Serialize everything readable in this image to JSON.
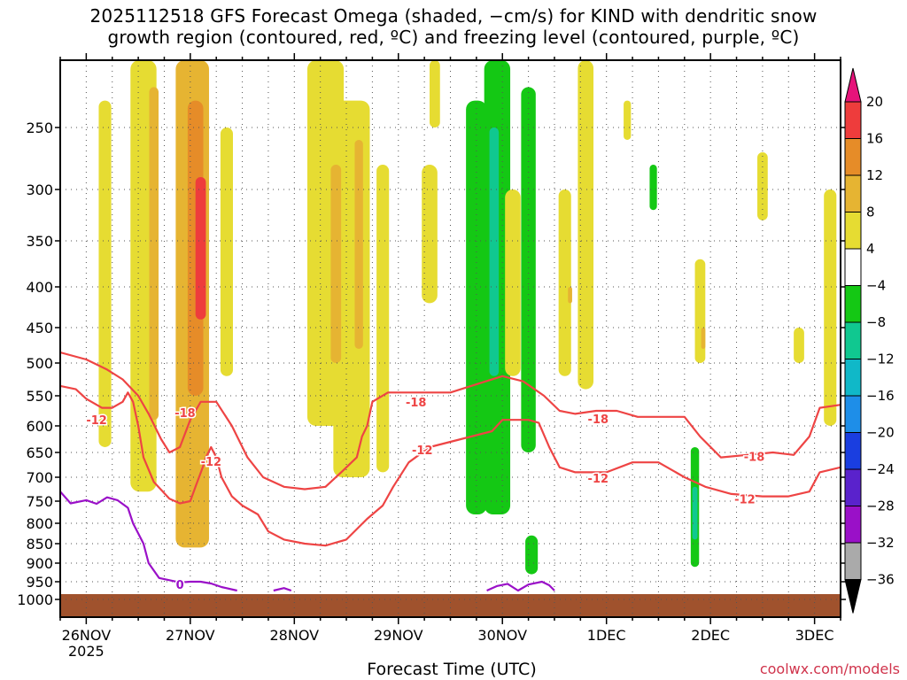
{
  "title_line1": "2025112518 GFS Forecast Omega (shaded, −cm/s) for KIND with dendritic snow",
  "title_line2": "growth region (contoured, red, ºC) and freezing level (contoured, purple, ºC)",
  "xlabel": "Forecast Time (UTC)",
  "credit": "coolwx.com/models",
  "chart_data": {
    "type": "heatmap",
    "title": "2025112518 GFS Forecast Omega (shaded, −cm/s) for KIND with dendritic snow growth region (contoured, red, ºC) and freezing level (contoured, purple, ºC)",
    "xlabel": "Forecast Time (UTC)",
    "ylabel": "",
    "y_axis": {
      "scale": "pressure",
      "inverted": true,
      "range": [
        1050,
        200
      ],
      "ticks": [
        250,
        300,
        350,
        400,
        450,
        500,
        550,
        600,
        650,
        700,
        750,
        800,
        850,
        900,
        950,
        1000
      ]
    },
    "x_axis": {
      "range": [
        -0.25,
        7.25
      ],
      "unit": "days from 26NOV 00Z",
      "tick_positions": [
        0,
        1,
        2,
        3,
        4,
        5,
        6,
        7
      ],
      "tick_labels": [
        "26NOV",
        "27NOV",
        "28NOV",
        "29NOV",
        "30NOV",
        "1DEC",
        "2DEC",
        "3DEC"
      ],
      "year_label": "2025"
    },
    "grid": true,
    "colorbar": {
      "levels": [
        -36,
        -32,
        -28,
        -24,
        -20,
        -16,
        -12,
        -8,
        -4,
        4,
        8,
        12,
        16,
        20
      ],
      "colors": [
        "#000000",
        "#aaaaaa",
        "#9a10c8",
        "#5a22cc",
        "#1a3ee0",
        "#1e8ee8",
        "#10b8c8",
        "#10c890",
        "#14c814",
        "#ffffff",
        "#e6dc32",
        "#e6b432",
        "#e68c28",
        "#ee3c3c",
        "#e6137a"
      ]
    },
    "shaded_regions": [
      {
        "x": 0.18,
        "p_top": 230,
        "p_bottom": 640,
        "width": 0.12,
        "value": 6
      },
      {
        "x": 0.55,
        "p_top": 200,
        "p_bottom": 730,
        "width": 0.25,
        "value": 7
      },
      {
        "x": 0.65,
        "p_top": 220,
        "p_bottom": 590,
        "width": 0.09,
        "value": 11
      },
      {
        "x": 1.02,
        "p_top": 200,
        "p_bottom": 860,
        "width": 0.32,
        "value": 8
      },
      {
        "x": 1.05,
        "p_top": 230,
        "p_bottom": 550,
        "width": 0.15,
        "value": 12
      },
      {
        "x": 1.1,
        "p_top": 290,
        "p_bottom": 440,
        "width": 0.1,
        "value": 17
      },
      {
        "x": 1.35,
        "p_top": 250,
        "p_bottom": 520,
        "width": 0.12,
        "value": 5
      },
      {
        "x": 2.3,
        "p_top": 200,
        "p_bottom": 600,
        "width": 0.35,
        "value": 6
      },
      {
        "x": 2.55,
        "p_top": 230,
        "p_bottom": 700,
        "width": 0.35,
        "value": 6
      },
      {
        "x": 2.4,
        "p_top": 280,
        "p_bottom": 500,
        "width": 0.1,
        "value": 10
      },
      {
        "x": 2.62,
        "p_top": 260,
        "p_bottom": 480,
        "width": 0.08,
        "value": 11
      },
      {
        "x": 2.85,
        "p_top": 280,
        "p_bottom": 690,
        "width": 0.12,
        "value": 6
      },
      {
        "x": 3.3,
        "p_top": 280,
        "p_bottom": 420,
        "width": 0.15,
        "value": 5
      },
      {
        "x": 3.35,
        "p_top": 200,
        "p_bottom": 250,
        "width": 0.1,
        "value": 5
      },
      {
        "x": 3.75,
        "p_top": 230,
        "p_bottom": 780,
        "width": 0.2,
        "value": -7
      },
      {
        "x": 3.95,
        "p_top": 200,
        "p_bottom": 780,
        "width": 0.25,
        "value": -7
      },
      {
        "x": 3.92,
        "p_top": 250,
        "p_bottom": 520,
        "width": 0.09,
        "value": -11
      },
      {
        "x": 4.25,
        "p_top": 220,
        "p_bottom": 650,
        "width": 0.14,
        "value": -5
      },
      {
        "x": 4.28,
        "p_top": 830,
        "p_bottom": 930,
        "width": 0.12,
        "value": -6
      },
      {
        "x": 4.1,
        "p_top": 300,
        "p_bottom": 520,
        "width": 0.15,
        "value": 6
      },
      {
        "x": 4.6,
        "p_top": 300,
        "p_bottom": 520,
        "width": 0.12,
        "value": 6
      },
      {
        "x": 4.65,
        "p_top": 400,
        "p_bottom": 420,
        "width": 0.04,
        "value": 10
      },
      {
        "x": 4.8,
        "p_top": 200,
        "p_bottom": 540,
        "width": 0.15,
        "value": 5
      },
      {
        "x": 5.2,
        "p_top": 230,
        "p_bottom": 260,
        "width": 0.07,
        "value": 5
      },
      {
        "x": 5.45,
        "p_top": 280,
        "p_bottom": 320,
        "width": 0.07,
        "value": -6
      },
      {
        "x": 5.9,
        "p_top": 370,
        "p_bottom": 500,
        "width": 0.1,
        "value": 6
      },
      {
        "x": 5.93,
        "p_top": 450,
        "p_bottom": 480,
        "width": 0.04,
        "value": 10
      },
      {
        "x": 5.85,
        "p_top": 640,
        "p_bottom": 910,
        "width": 0.08,
        "value": -8
      },
      {
        "x": 5.85,
        "p_top": 720,
        "p_bottom": 840,
        "width": 0.05,
        "value": -12
      },
      {
        "x": 6.5,
        "p_top": 270,
        "p_bottom": 330,
        "width": 0.1,
        "value": 5
      },
      {
        "x": 6.85,
        "p_top": 450,
        "p_bottom": 500,
        "width": 0.1,
        "value": 5
      },
      {
        "x": 7.15,
        "p_top": 300,
        "p_bottom": 600,
        "width": 0.12,
        "value": 6
      }
    ],
    "series": [
      {
        "name": "-18",
        "kind": "contour",
        "color": "#ee4444",
        "points": [
          [
            -0.25,
            485
          ],
          [
            0.0,
            495
          ],
          [
            0.2,
            510
          ],
          [
            0.35,
            525
          ],
          [
            0.5,
            550
          ],
          [
            0.6,
            580
          ],
          [
            0.72,
            625
          ],
          [
            0.8,
            650
          ],
          [
            0.9,
            640
          ],
          [
            1.0,
            590
          ],
          [
            1.1,
            560
          ],
          [
            1.25,
            560
          ],
          [
            1.4,
            600
          ],
          [
            1.55,
            660
          ],
          [
            1.7,
            700
          ],
          [
            1.9,
            720
          ],
          [
            2.1,
            725
          ],
          [
            2.3,
            720
          ],
          [
            2.45,
            690
          ],
          [
            2.6,
            660
          ],
          [
            2.65,
            620
          ],
          [
            2.7,
            600
          ],
          [
            2.75,
            560
          ],
          [
            2.9,
            545
          ],
          [
            3.1,
            545
          ],
          [
            3.5,
            545
          ],
          [
            3.8,
            530
          ],
          [
            4.0,
            520
          ],
          [
            4.2,
            528
          ],
          [
            4.4,
            550
          ],
          [
            4.55,
            575
          ],
          [
            4.7,
            580
          ],
          [
            4.9,
            575
          ],
          [
            5.1,
            575
          ],
          [
            5.3,
            585
          ],
          [
            5.5,
            585
          ],
          [
            5.75,
            585
          ],
          [
            5.9,
            620
          ],
          [
            6.1,
            660
          ],
          [
            6.35,
            655
          ],
          [
            6.6,
            650
          ],
          [
            6.8,
            655
          ],
          [
            6.95,
            620
          ],
          [
            7.05,
            570
          ],
          [
            7.25,
            565
          ]
        ]
      },
      {
        "name": "-12",
        "kind": "contour",
        "color": "#ee4444",
        "points": [
          [
            -0.25,
            535
          ],
          [
            -0.1,
            540
          ],
          [
            0.0,
            555
          ],
          [
            0.15,
            570
          ],
          [
            0.25,
            570
          ],
          [
            0.35,
            560
          ],
          [
            0.4,
            545
          ],
          [
            0.45,
            560
          ],
          [
            0.5,
            600
          ],
          [
            0.55,
            660
          ],
          [
            0.65,
            710
          ],
          [
            0.8,
            745
          ],
          [
            0.9,
            755
          ],
          [
            1.0,
            750
          ],
          [
            1.05,
            720
          ],
          [
            1.12,
            680
          ],
          [
            1.15,
            660
          ],
          [
            1.2,
            640
          ],
          [
            1.25,
            660
          ],
          [
            1.3,
            700
          ],
          [
            1.4,
            740
          ],
          [
            1.5,
            760
          ],
          [
            1.65,
            780
          ],
          [
            1.75,
            820
          ],
          [
            1.9,
            840
          ],
          [
            2.1,
            850
          ],
          [
            2.3,
            855
          ],
          [
            2.5,
            840
          ],
          [
            2.7,
            790
          ],
          [
            2.85,
            760
          ],
          [
            2.95,
            720
          ],
          [
            3.1,
            670
          ],
          [
            3.3,
            640
          ],
          [
            3.5,
            630
          ],
          [
            3.7,
            620
          ],
          [
            3.9,
            610
          ],
          [
            4.0,
            590
          ],
          [
            4.1,
            590
          ],
          [
            4.25,
            590
          ],
          [
            4.35,
            595
          ],
          [
            4.45,
            640
          ],
          [
            4.55,
            680
          ],
          [
            4.7,
            690
          ],
          [
            4.85,
            690
          ],
          [
            5.0,
            690
          ],
          [
            5.25,
            670
          ],
          [
            5.5,
            670
          ],
          [
            5.75,
            700
          ],
          [
            5.95,
            720
          ],
          [
            6.2,
            735
          ],
          [
            6.5,
            740
          ],
          [
            6.75,
            740
          ],
          [
            6.95,
            730
          ],
          [
            7.05,
            690
          ],
          [
            7.25,
            680
          ]
        ]
      },
      {
        "name": "0",
        "kind": "contour",
        "color": "#9a10c8",
        "points_segments": [
          [
            [
              -0.25,
              730
            ],
            [
              -0.15,
              755
            ],
            [
              0.0,
              748
            ],
            [
              0.1,
              756
            ],
            [
              0.2,
              742
            ],
            [
              0.3,
              748
            ],
            [
              0.4,
              765
            ],
            [
              0.45,
              800
            ],
            [
              0.55,
              850
            ],
            [
              0.6,
              900
            ],
            [
              0.7,
              940
            ],
            [
              0.9,
              952
            ],
            [
              1.0,
              950
            ],
            [
              1.1,
              950
            ],
            [
              1.2,
              955
            ],
            [
              1.3,
              965
            ],
            [
              1.45,
              975
            ]
          ],
          [
            [
              1.8,
              975
            ],
            [
              1.9,
              968
            ],
            [
              1.97,
              975
            ]
          ],
          [
            [
              3.85,
              975
            ],
            [
              3.95,
              962
            ],
            [
              4.05,
              956
            ],
            [
              4.15,
              975
            ],
            [
              4.25,
              958
            ],
            [
              4.38,
              950
            ],
            [
              4.45,
              960
            ],
            [
              4.5,
              975
            ]
          ]
        ]
      }
    ],
    "contour_labels": [
      {
        "text": "-18",
        "x": 0.95,
        "p": 578,
        "series": "-18"
      },
      {
        "text": "-18",
        "x": 3.17,
        "p": 560,
        "series": "-18"
      },
      {
        "text": "-18",
        "x": 4.92,
        "p": 588,
        "series": "-18"
      },
      {
        "text": "-18",
        "x": 6.42,
        "p": 658,
        "series": "-18"
      },
      {
        "text": "-12",
        "x": 0.1,
        "p": 590,
        "series": "-12"
      },
      {
        "text": "-12",
        "x": 1.2,
        "p": 668,
        "series": "-12"
      },
      {
        "text": "-12",
        "x": 3.23,
        "p": 645,
        "series": "-12"
      },
      {
        "text": "-12",
        "x": 4.92,
        "p": 702,
        "series": "-12"
      },
      {
        "text": "-12",
        "x": 6.33,
        "p": 745,
        "series": "-12"
      },
      {
        "text": "0",
        "x": 0.9,
        "p": 958,
        "series": "0"
      }
    ],
    "terrain": {
      "color": "#a0522d",
      "p_top": 985
    }
  }
}
